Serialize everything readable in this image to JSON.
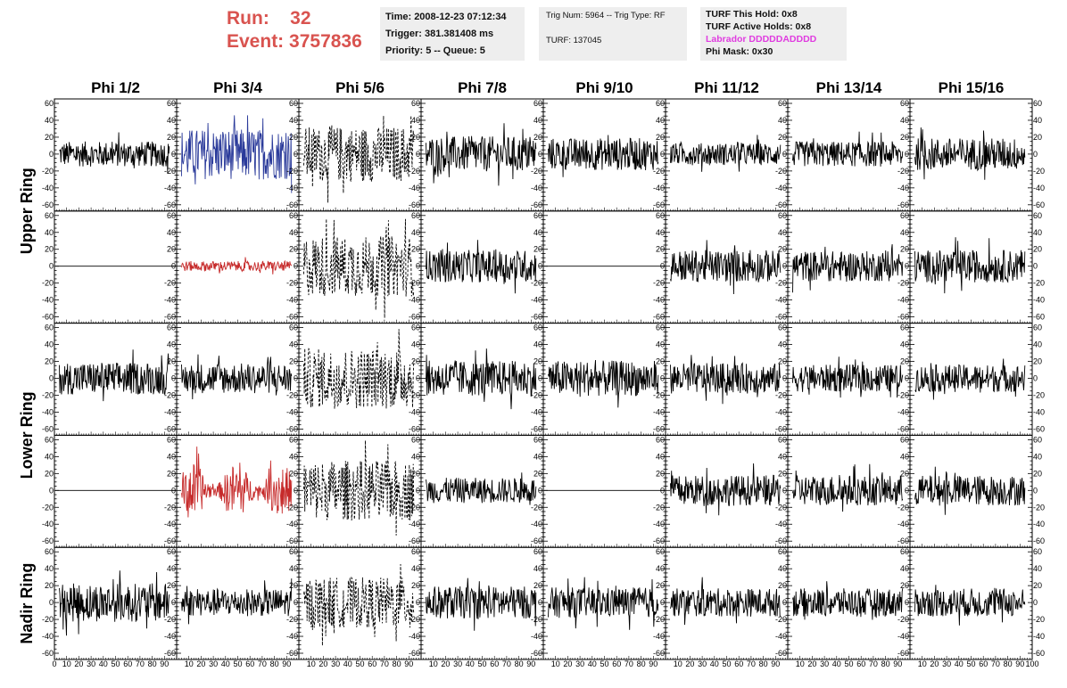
{
  "header": {
    "run_label": "Run:",
    "run_value": "32",
    "event_label": "Event:",
    "event_value": "3757836"
  },
  "time_box": {
    "time": "Time: 2008-12-23 07:12:34",
    "trigger": "Trigger: 381.381408 ms",
    "priority": "Priority: 5 -- Queue: 5"
  },
  "trig_box": {
    "trig": "Trig Num: 5964 -- Trig Type: RF",
    "turf": "TURF: 137045"
  },
  "turf_box": {
    "this_hold": "TURF This Hold: 0x8",
    "active_holds": "TURF Active Holds: 0x8",
    "labrador": "Labrador DDDDDADDDD",
    "phi_mask": "Phi Mask: 0x30"
  },
  "grid": {
    "columns": [
      "Phi 1/2",
      "Phi 3/4",
      "Phi 5/6",
      "Phi 7/8",
      "Phi 9/10",
      "Phi 11/12",
      "Phi 13/14",
      "Phi 15/16"
    ],
    "row_labels": [
      {
        "text": "Upper Ring",
        "rows": [
          0,
          1
        ]
      },
      {
        "text": "Lower Ring",
        "rows": [
          2,
          3
        ]
      },
      {
        "text": "Nadir Ring",
        "rows": [
          4,
          4
        ]
      }
    ],
    "y_ticks": [
      "60",
      "40",
      "20",
      "0",
      "-20",
      "-40",
      "-60"
    ],
    "x_ticks": [
      "0",
      "10",
      "20",
      "30",
      "40",
      "50",
      "60",
      "70",
      "80",
      "90",
      "100"
    ],
    "x_ticks_inner": [
      "10",
      "20",
      "30",
      "40",
      "50",
      "60",
      "70",
      "80",
      "90",
      "10"
    ],
    "colors": {
      "black": "#000000",
      "blue": "#2a3a9a",
      "red": "#c62a2a"
    },
    "panels": [
      [
        {
          "style": "black",
          "amp": 0.25
        },
        {
          "style": "blue",
          "amp": 0.5
        },
        {
          "style": "dashed",
          "amp": 0.55
        },
        {
          "style": "black",
          "amp": 0.35
        },
        {
          "style": "black",
          "amp": 0.32
        },
        {
          "style": "black",
          "amp": 0.22
        },
        {
          "style": "black",
          "amp": 0.25
        },
        {
          "style": "black",
          "amp": 0.32
        }
      ],
      [
        {
          "style": "flat",
          "amp": 0
        },
        {
          "style": "red",
          "amp": 0.1
        },
        {
          "style": "dashed",
          "amp": 0.6
        },
        {
          "style": "black",
          "amp": 0.32
        },
        {
          "style": "flat",
          "amp": 0
        },
        {
          "style": "black",
          "amp": 0.32
        },
        {
          "style": "black",
          "amp": 0.3
        },
        {
          "style": "black",
          "amp": 0.32
        }
      ],
      [
        {
          "style": "black",
          "amp": 0.32
        },
        {
          "style": "black",
          "amp": 0.3
        },
        {
          "style": "dashed",
          "amp": 0.6
        },
        {
          "style": "black",
          "amp": 0.35
        },
        {
          "style": "black",
          "amp": 0.35
        },
        {
          "style": "black",
          "amp": 0.3
        },
        {
          "style": "black",
          "amp": 0.27
        },
        {
          "style": "black",
          "amp": 0.27
        }
      ],
      [
        {
          "style": "flat",
          "amp": 0
        },
        {
          "style": "red",
          "amp": 0.55
        },
        {
          "style": "dashed",
          "amp": 0.6
        },
        {
          "style": "black",
          "amp": 0.25
        },
        {
          "style": "flat",
          "amp": 0
        },
        {
          "style": "black",
          "amp": 0.3
        },
        {
          "style": "black",
          "amp": 0.3
        },
        {
          "style": "black",
          "amp": 0.3
        }
      ],
      [
        {
          "style": "black",
          "amp": 0.38
        },
        {
          "style": "black",
          "amp": 0.27
        },
        {
          "style": "dashed",
          "amp": 0.5
        },
        {
          "style": "black",
          "amp": 0.32
        },
        {
          "style": "black",
          "amp": 0.3
        },
        {
          "style": "black",
          "amp": 0.28
        },
        {
          "style": "black",
          "amp": 0.28
        },
        {
          "style": "black",
          "amp": 0.28
        }
      ]
    ]
  }
}
